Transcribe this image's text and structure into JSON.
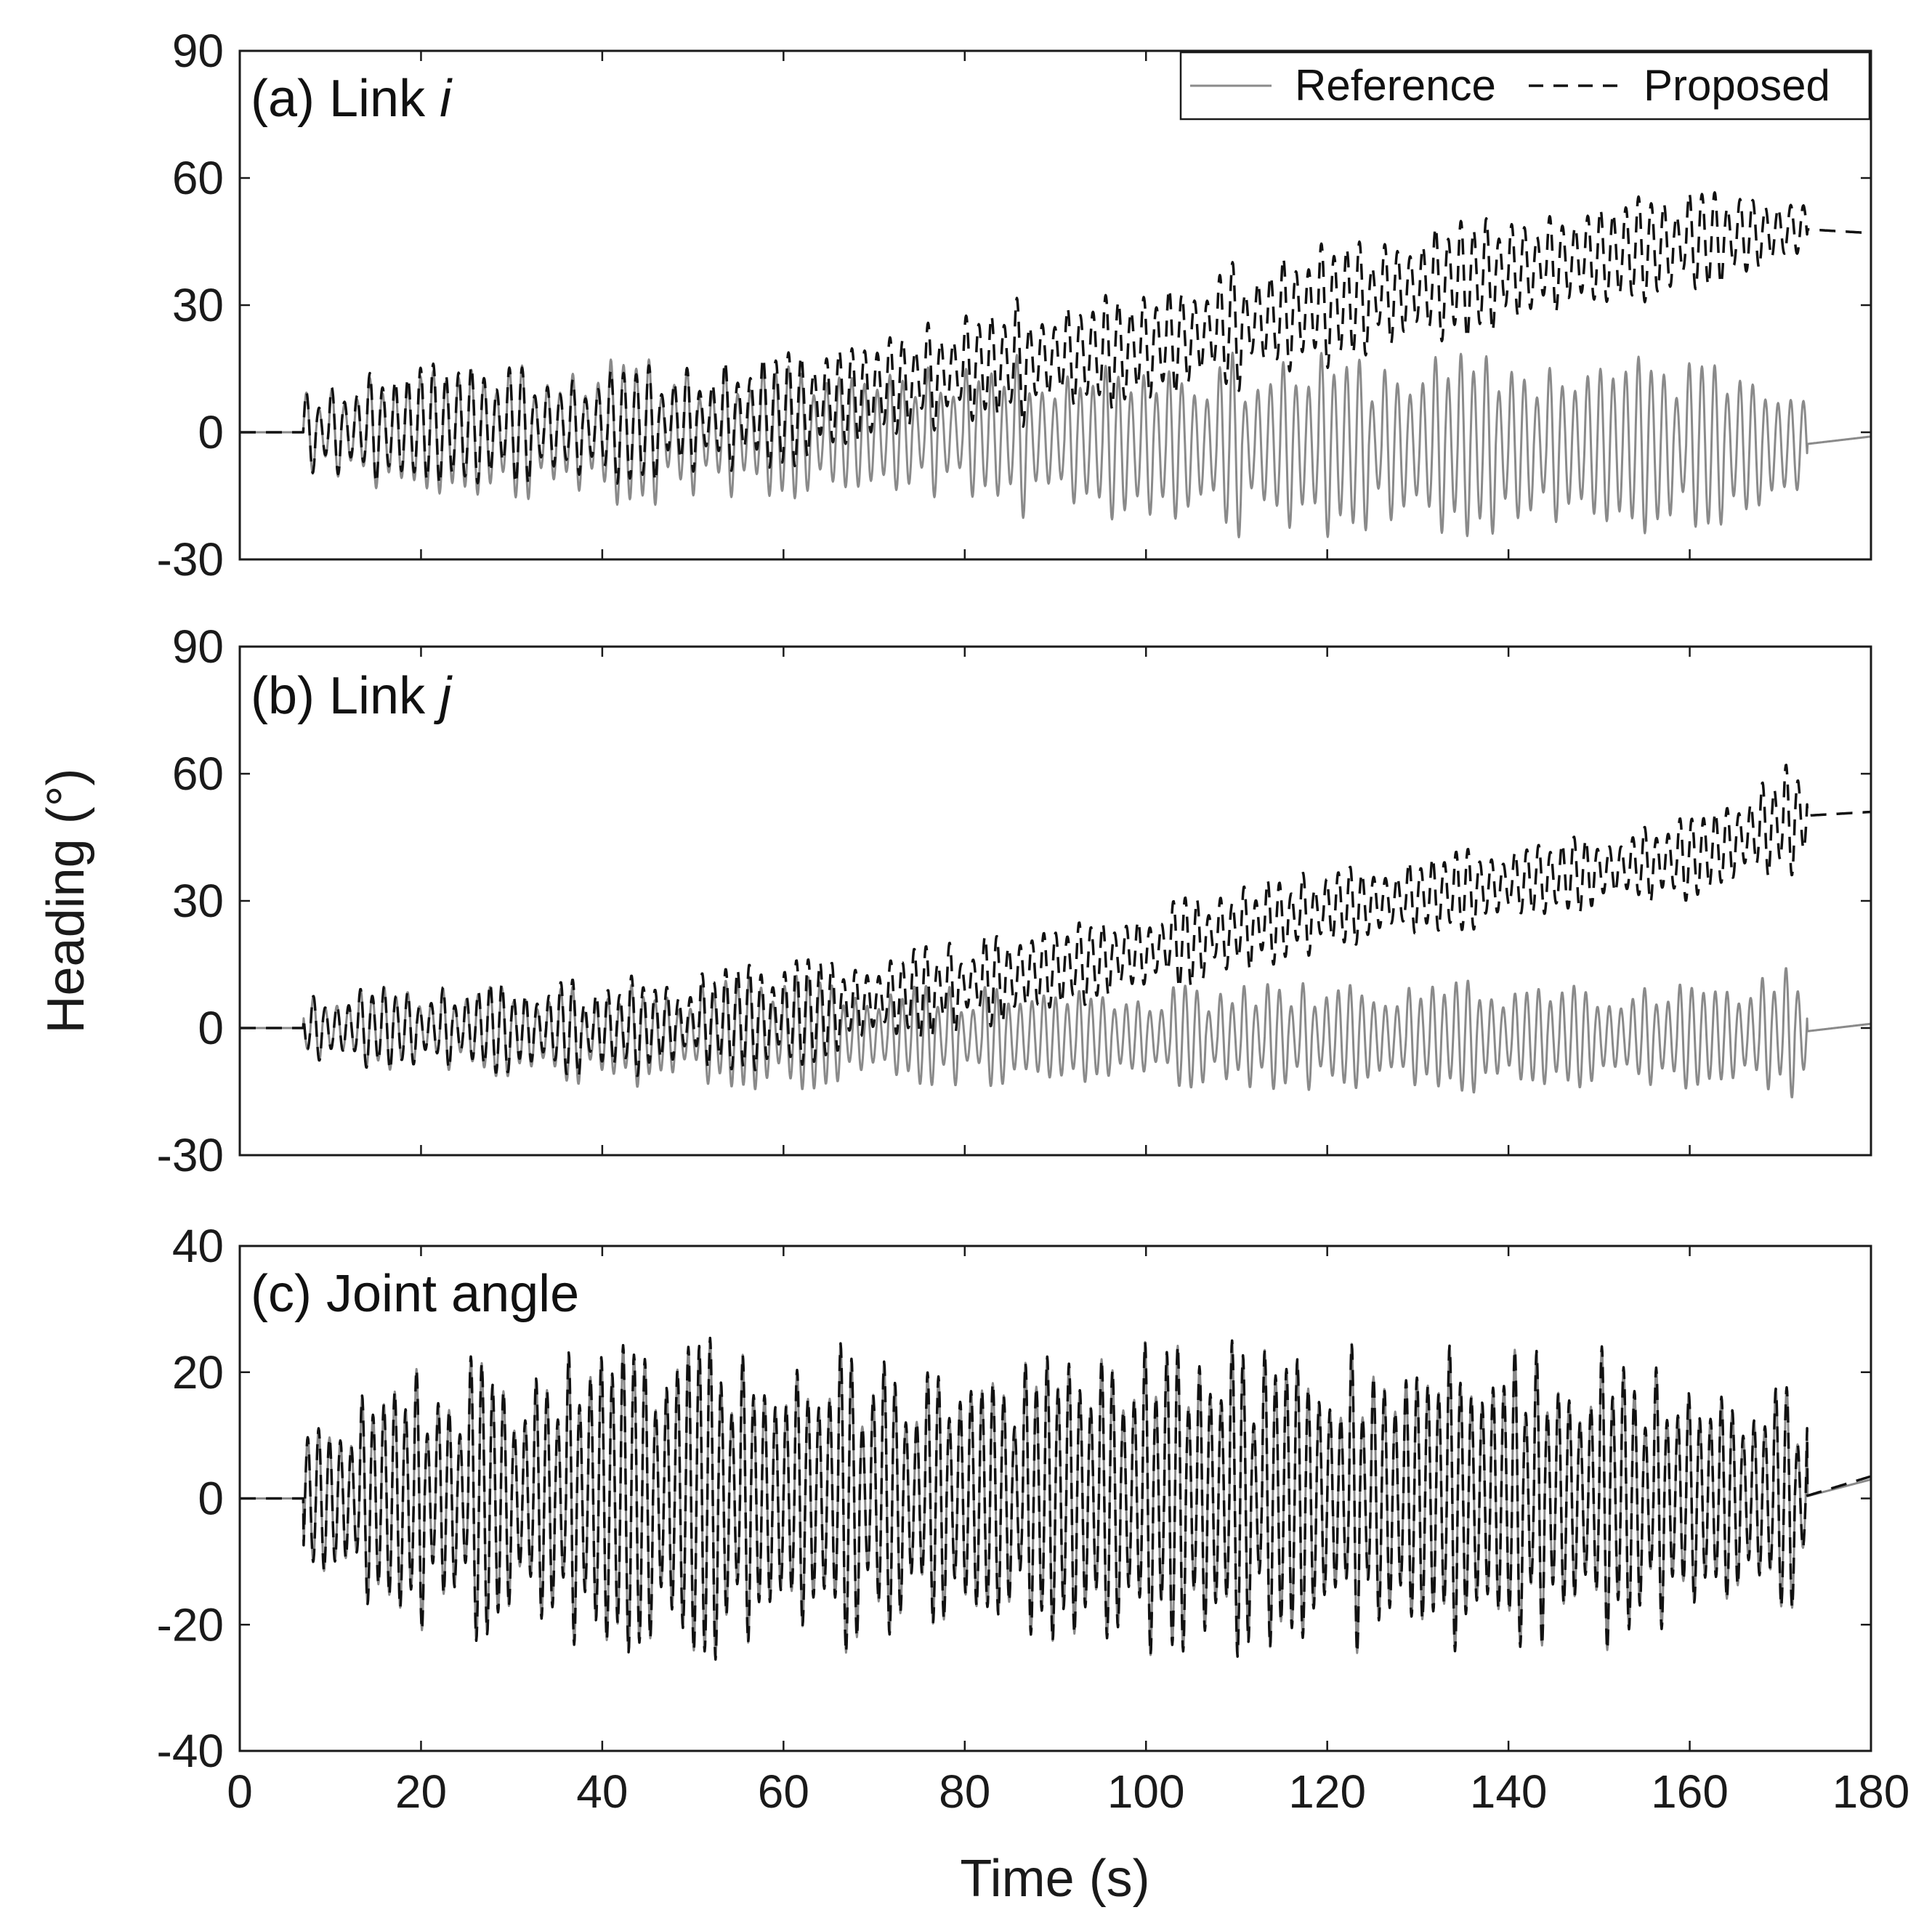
{
  "figure": {
    "xlabel": "Time (s)",
    "ylabel": "Heading (°)"
  },
  "legend": {
    "reference_label": "Reference",
    "proposed_label": "Proposed"
  },
  "colors": {
    "reference": "#8a8a8a",
    "proposed": "#111111",
    "axes": "#1a1a1a",
    "background": "#ffffff"
  },
  "chart_data": [
    {
      "type": "line",
      "panel": "a",
      "title": "(a) Link i",
      "title_prefix": "(a) Link ",
      "title_var": "i",
      "xlabel": "",
      "ylabel": "",
      "xlim": [
        0,
        180
      ],
      "ylim": [
        -30,
        90
      ],
      "xticks": [
        0,
        20,
        40,
        60,
        80,
        100,
        120,
        140,
        160,
        180
      ],
      "yticks": [
        -30,
        0,
        30,
        60,
        90
      ],
      "ytick_labels": [
        "-30",
        "0",
        "30",
        "60",
        "90"
      ],
      "oscillation": {
        "start_s": 7,
        "end_s": 173,
        "period_s": 1.4
      },
      "series": [
        {
          "name": "Reference",
          "style": "solid",
          "t": [
            0,
            7,
            20,
            40,
            60,
            80,
            100,
            120,
            140,
            160,
            172,
            180
          ],
          "center": [
            0,
            0,
            0,
            0,
            0,
            0,
            -3,
            -3,
            -3,
            -3,
            -3,
            -1
          ],
          "amplitude": [
            0,
            10,
            18,
            18,
            16,
            18,
            22,
            22,
            22,
            22,
            22,
            0
          ]
        },
        {
          "name": "Proposed",
          "style": "dashed",
          "t": [
            0,
            7,
            20,
            40,
            60,
            80,
            100,
            120,
            140,
            160,
            172,
            180
          ],
          "center": [
            0,
            0,
            2,
            1,
            5,
            15,
            20,
            30,
            38,
            45,
            48,
            47
          ],
          "amplitude": [
            0,
            10,
            18,
            14,
            14,
            15,
            16,
            15,
            14,
            13,
            12,
            0
          ]
        }
      ]
    },
    {
      "type": "line",
      "panel": "b",
      "title": "(b) Link j",
      "title_prefix": "(b) Link ",
      "title_var": "j",
      "xlabel": "",
      "ylabel": "Heading (°)",
      "xlim": [
        0,
        180
      ],
      "ylim": [
        -30,
        90
      ],
      "xticks": [
        0,
        20,
        40,
        60,
        80,
        100,
        120,
        140,
        160,
        180
      ],
      "yticks": [
        -30,
        0,
        30,
        60,
        90
      ],
      "ytick_labels": [
        "-30",
        "0",
        "30",
        "60",
        "90"
      ],
      "oscillation": {
        "start_s": 7,
        "end_s": 173,
        "period_s": 1.3
      },
      "series": [
        {
          "name": "Reference",
          "style": "solid",
          "t": [
            0,
            7,
            20,
            40,
            60,
            80,
            100,
            120,
            140,
            160,
            172,
            180
          ],
          "center": [
            0,
            0,
            0,
            -2,
            -1,
            -2,
            -2,
            -2,
            -2,
            -2,
            -1,
            1
          ],
          "amplitude": [
            0,
            8,
            11,
            12,
            14,
            12,
            12,
            13,
            14,
            15,
            16,
            0
          ]
        },
        {
          "name": "Proposed",
          "style": "dashed",
          "t": [
            0,
            7,
            20,
            40,
            60,
            80,
            100,
            120,
            140,
            160,
            172,
            180
          ],
          "center": [
            0,
            0,
            0,
            0,
            3,
            10,
            18,
            28,
            34,
            40,
            50,
            51
          ],
          "amplitude": [
            0,
            8,
            11,
            12,
            13,
            11,
            11,
            10,
            10,
            12,
            14,
            0
          ]
        }
      ]
    },
    {
      "type": "line",
      "panel": "c",
      "title": "(c) Joint angle",
      "xlabel": "Time (s)",
      "ylabel": "",
      "xlim": [
        0,
        180
      ],
      "ylim": [
        -40,
        40
      ],
      "xticks": [
        0,
        20,
        40,
        60,
        80,
        100,
        120,
        140,
        160,
        180
      ],
      "xtick_labels": [
        "0",
        "20",
        "40",
        "60",
        "80",
        "100",
        "120",
        "140",
        "160",
        "180"
      ],
      "yticks": [
        -40,
        -20,
        0,
        20,
        40
      ],
      "ytick_labels": [
        "-40",
        "-20",
        "0",
        "20",
        "40"
      ],
      "oscillation": {
        "start_s": 7,
        "end_s": 173,
        "period_s": 1.2
      },
      "series": [
        {
          "name": "Reference",
          "style": "solid",
          "t": [
            0,
            7,
            20,
            40,
            60,
            80,
            100,
            120,
            140,
            160,
            172,
            180
          ],
          "center": [
            0,
            0,
            0,
            0,
            0,
            0,
            0,
            0,
            0,
            0,
            0,
            3
          ],
          "amplitude": [
            0,
            12,
            22,
            24,
            27,
            22,
            25,
            26,
            26,
            24,
            18,
            0
          ]
        },
        {
          "name": "Proposed",
          "style": "dashed",
          "t": [
            0,
            7,
            20,
            40,
            60,
            80,
            100,
            120,
            140,
            160,
            172,
            180
          ],
          "center": [
            0,
            0,
            0,
            0,
            0,
            0,
            0,
            0,
            0,
            0,
            0,
            3.5
          ],
          "amplitude": [
            0,
            12,
            22,
            24,
            27,
            22,
            25,
            26,
            26,
            24,
            18,
            0
          ]
        }
      ]
    }
  ]
}
